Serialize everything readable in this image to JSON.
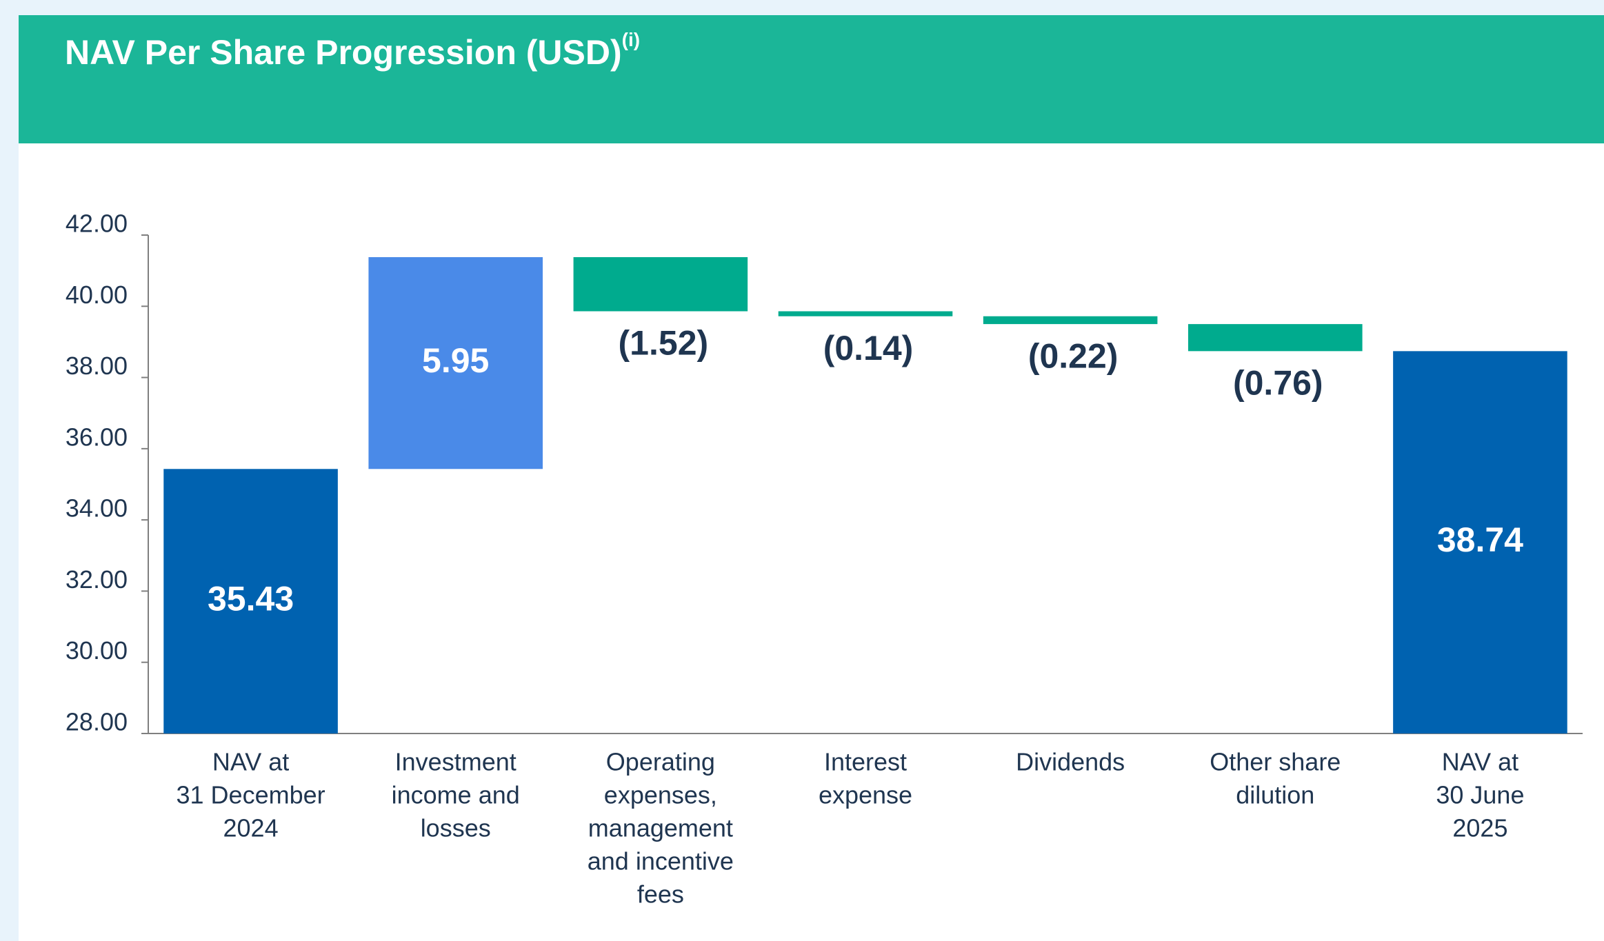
{
  "chart_data": {
    "type": "waterfall",
    "title": "NAV Per Share Progression (USD)",
    "title_note": "(i)",
    "categories": [
      [
        "NAV at",
        "31 December",
        "2024"
      ],
      [
        "Investment",
        "income and",
        "losses"
      ],
      [
        "Operating",
        "expenses,",
        "management",
        "and incentive",
        "fees"
      ],
      [
        "Interest",
        "expense"
      ],
      [
        "Dividends"
      ],
      [
        "Other share",
        "dilution"
      ],
      [
        "NAV at",
        "30 June",
        "2025"
      ]
    ],
    "measure": [
      "total",
      "relative",
      "relative",
      "relative",
      "relative",
      "relative",
      "total"
    ],
    "values": [
      35.43,
      5.95,
      -1.52,
      -0.14,
      -0.22,
      -0.76,
      38.74
    ],
    "value_labels": [
      "35.43",
      "5.95",
      "(1.52)",
      "(0.14)",
      "(0.22)",
      "(0.76)",
      "38.74"
    ],
    "colors": [
      "#0062b0",
      "#4a8ae8",
      "#00ab8e",
      "#00ab8e",
      "#00ab8e",
      "#00ab8e",
      "#0062b0"
    ],
    "ylim": [
      28,
      42
    ],
    "yticks": [
      {
        "value": 28,
        "label": "28.00"
      },
      {
        "value": 30,
        "label": "30.00"
      },
      {
        "value": 32,
        "label": "32.00"
      },
      {
        "value": 34,
        "label": "34.00"
      },
      {
        "value": 36,
        "label": "36.00"
      },
      {
        "value": 38,
        "label": "38.00"
      },
      {
        "value": 40,
        "label": "40.00"
      },
      {
        "value": 42,
        "label": "42.00"
      }
    ]
  }
}
